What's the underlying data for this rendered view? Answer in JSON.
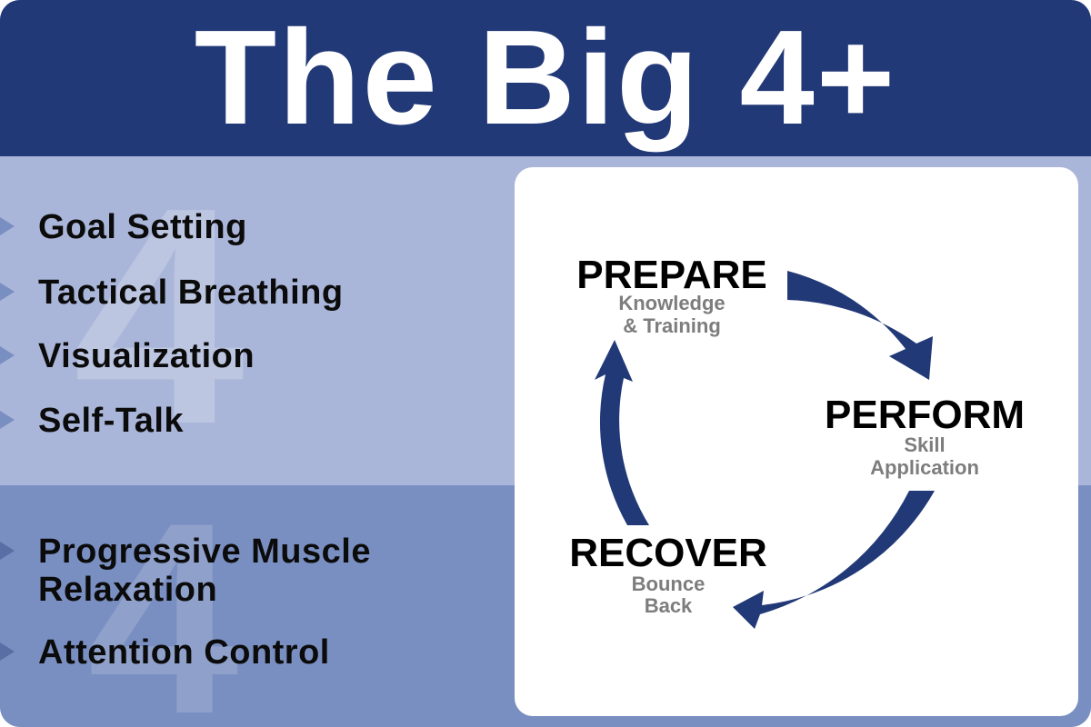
{
  "title": "The Big 4+",
  "ghost_numerals": {
    "top": "4",
    "bottom": "4"
  },
  "big4_skills": [
    {
      "label": "Goal Setting"
    },
    {
      "label": "Tactical Breathing"
    },
    {
      "label": "Visualization"
    },
    {
      "label": "Self-Talk"
    }
  ],
  "plus_skills": [
    {
      "label_line1": "Progressive Muscle",
      "label_line2": "Relaxation"
    },
    {
      "label_line1": "Attention Control",
      "label_line2": ""
    }
  ],
  "cycle": {
    "prepare": {
      "label": "PREPARE",
      "sub_line1": "Knowledge",
      "sub_line2": "& Training"
    },
    "perform": {
      "label": "PERFORM",
      "sub_line1": "Skill",
      "sub_line2": "Application"
    },
    "recover": {
      "label": "RECOVER",
      "sub_line1": "Bounce",
      "sub_line2": "Back"
    }
  },
  "colors": {
    "header": "#223977",
    "panel_top": "#aab6d9",
    "panel_bottom": "#7a8fc1",
    "arrow": "#223977",
    "subtitle_gray": "#7d7d7d"
  }
}
